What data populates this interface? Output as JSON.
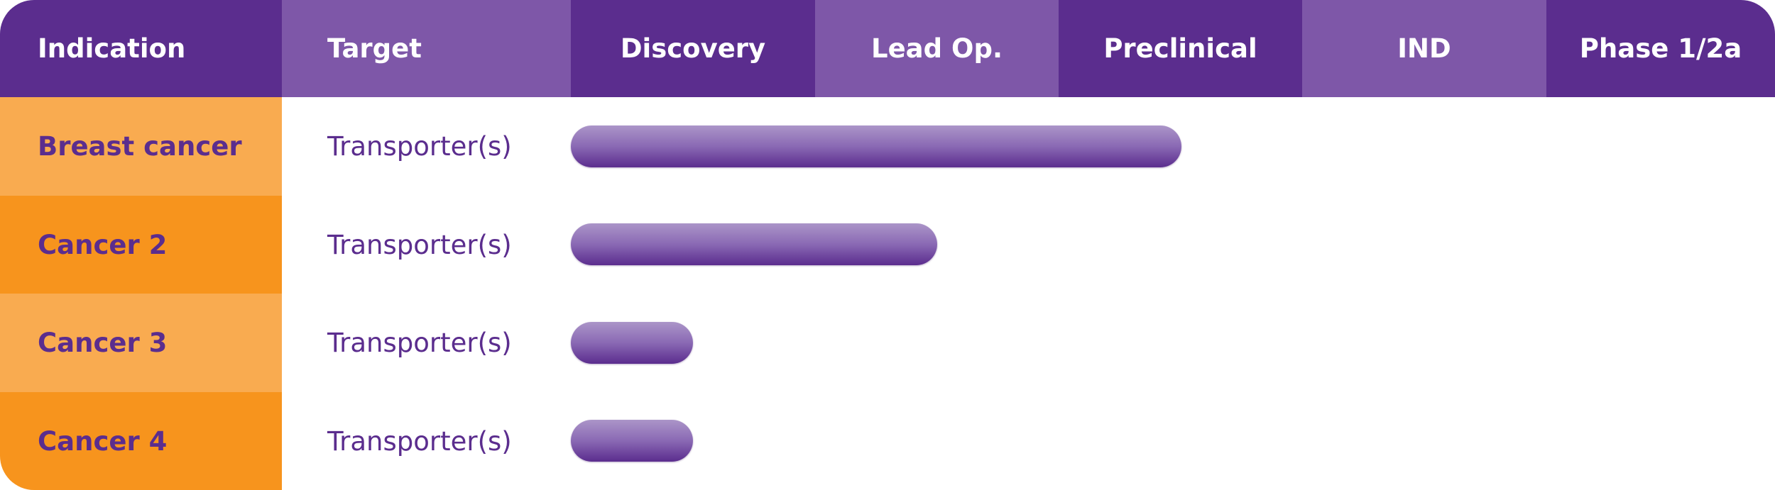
{
  "header": {
    "columns": [
      "Indication",
      "Target",
      "Discovery",
      "Lead Op.",
      "Preclinical",
      "IND",
      "Phase 1/2a"
    ]
  },
  "rows": [
    {
      "indication": "Breast cancer",
      "target": "Transporter(s)",
      "progress": 2.5
    },
    {
      "indication": "Cancer 2",
      "target": "Transporter(s)",
      "progress": 1.5
    },
    {
      "indication": "Cancer 3",
      "target": "Transporter(s)",
      "progress": 0.5
    },
    {
      "indication": "Cancer 4",
      "target": "Transporter(s)",
      "progress": 0.5
    }
  ]
}
